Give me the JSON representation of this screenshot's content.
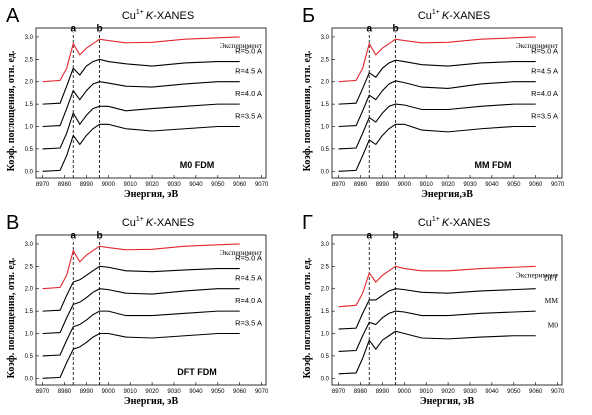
{
  "chart_data": [
    {
      "type": "line",
      "panel": "А",
      "title": {
        "text": "Cu",
        "sup": "1+",
        "italic": "K",
        "rest": "-XANES"
      },
      "model": "M0 FDM",
      "xlabel": "Энергия, эВ",
      "ylabel": "Коэф. поглощения, отн. ед.",
      "xlim": [
        8967,
        9072
      ],
      "ylim": [
        -0.15,
        3.2
      ],
      "xticks": [
        8970,
        8980,
        8990,
        9000,
        9010,
        9020,
        9030,
        9040,
        9050,
        9060,
        9070
      ],
      "yticks": [
        {
          "value": 0,
          "label": "0.0"
        },
        0.5,
        {
          "value": 1,
          "label": "1.0"
        },
        1.5,
        {
          "value": 2,
          "label": "2.0"
        },
        2.5,
        {
          "value": 3,
          "label": "3.0"
        }
      ],
      "markers": [
        {
          "x": 8984,
          "label": "a"
        },
        {
          "x": 8996,
          "label": "b"
        }
      ],
      "x": [
        8970,
        8978,
        8981,
        8984,
        8987,
        8990,
        8993,
        8996,
        9000,
        9008,
        9020,
        9035,
        9050,
        9060
      ],
      "series": [
        {
          "name": "Эксперимент",
          "color": "#e3262e",
          "values": [
            2.0,
            2.03,
            2.3,
            2.85,
            2.6,
            2.75,
            2.85,
            2.95,
            2.92,
            2.87,
            2.88,
            2.95,
            2.98,
            3.0
          ]
        },
        {
          "name": "R=5.0 A",
          "color": "#000000",
          "values": [
            1.5,
            1.52,
            1.9,
            2.3,
            2.15,
            2.35,
            2.45,
            2.5,
            2.45,
            2.4,
            2.35,
            2.42,
            2.45,
            2.45
          ]
        },
        {
          "name": "R=4.5 A",
          "color": "#000000",
          "values": [
            1.0,
            1.02,
            1.4,
            1.8,
            1.6,
            1.8,
            1.95,
            2.0,
            1.97,
            1.9,
            1.88,
            1.95,
            2.0,
            2.0
          ]
        },
        {
          "name": "R=4.0 A",
          "color": "#000000",
          "values": [
            0.5,
            0.52,
            0.85,
            1.3,
            1.05,
            1.25,
            1.4,
            1.45,
            1.45,
            1.35,
            1.4,
            1.45,
            1.5,
            1.5
          ]
        },
        {
          "name": "R=3.5 A",
          "color": "#000000",
          "values": [
            0.0,
            0.02,
            0.35,
            0.8,
            0.6,
            0.8,
            0.95,
            1.05,
            1.05,
            0.95,
            0.9,
            0.95,
            1.0,
            1.0
          ]
        }
      ]
    },
    {
      "type": "line",
      "panel": "Б",
      "title": {
        "text": "Cu",
        "sup": "1+",
        "italic": "K",
        "rest": "-XANES"
      },
      "model": "MM FDM",
      "xlabel": "Энергия,эВ",
      "ylabel": "Коэф. поглощения, отн. ед.",
      "xlim": [
        8967,
        9072
      ],
      "ylim": [
        -0.15,
        3.2
      ],
      "xticks": [
        8970,
        8980,
        8990,
        9000,
        9010,
        9020,
        9030,
        9040,
        9050,
        9060,
        9070
      ],
      "yticks": [
        {
          "value": 0,
          "label": "0.0"
        },
        0.5,
        {
          "value": 1,
          "label": "1.0"
        },
        1.5,
        {
          "value": 2,
          "label": "2.0"
        },
        2.5,
        {
          "value": 3,
          "label": "3.0"
        }
      ],
      "markers": [
        {
          "x": 8984,
          "label": "a"
        },
        {
          "x": 8996,
          "label": "b"
        }
      ],
      "x": [
        8970,
        8978,
        8981,
        8984,
        8987,
        8990,
        8993,
        8996,
        9000,
        9008,
        9020,
        9035,
        9050,
        9060
      ],
      "series": [
        {
          "name": "Эксперимент",
          "color": "#e3262e",
          "values": [
            2.0,
            2.03,
            2.3,
            2.85,
            2.6,
            2.75,
            2.85,
            2.95,
            2.92,
            2.87,
            2.88,
            2.95,
            2.98,
            3.0
          ]
        },
        {
          "name": "R=5.0 A",
          "color": "#000000",
          "values": [
            1.5,
            1.52,
            1.85,
            2.2,
            2.1,
            2.3,
            2.42,
            2.48,
            2.45,
            2.38,
            2.35,
            2.42,
            2.45,
            2.45
          ]
        },
        {
          "name": "R=4.5 A",
          "color": "#000000",
          "values": [
            1.0,
            1.02,
            1.35,
            1.7,
            1.6,
            1.8,
            1.95,
            2.02,
            1.98,
            1.88,
            1.85,
            1.95,
            2.0,
            2.0
          ]
        },
        {
          "name": "R=4.0 A",
          "color": "#000000",
          "values": [
            0.5,
            0.52,
            0.85,
            1.2,
            1.1,
            1.3,
            1.45,
            1.5,
            1.48,
            1.38,
            1.38,
            1.45,
            1.5,
            1.5
          ]
        },
        {
          "name": "R=3.5 A",
          "color": "#000000",
          "values": [
            0.0,
            0.02,
            0.35,
            0.7,
            0.6,
            0.8,
            0.95,
            1.05,
            1.05,
            0.92,
            0.88,
            0.95,
            1.0,
            1.0
          ]
        }
      ]
    },
    {
      "type": "line",
      "panel": "В",
      "title": {
        "text": "Cu",
        "sup": "1+",
        "italic": "K",
        "rest": "-XANES"
      },
      "model": "DFT FDM",
      "xlabel": "Энергия, эВ",
      "ylabel": "Коэф. поглощения, отн. ед.",
      "xlim": [
        8967,
        9072
      ],
      "ylim": [
        -0.15,
        3.2
      ],
      "xticks": [
        8970,
        8980,
        8990,
        9000,
        9010,
        9020,
        9030,
        9040,
        9050,
        9060,
        9070
      ],
      "yticks": [
        {
          "value": 0,
          "label": "0.0"
        },
        0.5,
        {
          "value": 1,
          "label": "1.0"
        },
        1.5,
        {
          "value": 2,
          "label": "2.0"
        },
        2.5,
        {
          "value": 3,
          "label": "3.0"
        }
      ],
      "markers": [
        {
          "x": 8984,
          "label": "a"
        },
        {
          "x": 8996,
          "label": "b"
        }
      ],
      "x": [
        8970,
        8978,
        8981,
        8984,
        8987,
        8990,
        8993,
        8996,
        9000,
        9008,
        9020,
        9035,
        9050,
        9060
      ],
      "series": [
        {
          "name": "Эксперимент",
          "color": "#e3262e",
          "values": [
            2.0,
            2.03,
            2.3,
            2.85,
            2.6,
            2.75,
            2.85,
            2.95,
            2.92,
            2.87,
            2.88,
            2.95,
            2.98,
            3.0
          ]
        },
        {
          "name": "R=5.0 A",
          "color": "#000000",
          "values": [
            1.5,
            1.52,
            1.85,
            2.15,
            2.2,
            2.3,
            2.4,
            2.5,
            2.48,
            2.4,
            2.38,
            2.42,
            2.45,
            2.45
          ]
        },
        {
          "name": "R=4.5 A",
          "color": "#000000",
          "values": [
            1.0,
            1.02,
            1.35,
            1.65,
            1.7,
            1.8,
            1.92,
            2.0,
            1.98,
            1.9,
            1.88,
            1.95,
            2.0,
            2.0
          ]
        },
        {
          "name": "R=4.0 A",
          "color": "#000000",
          "values": [
            0.5,
            0.52,
            0.85,
            1.15,
            1.2,
            1.3,
            1.42,
            1.5,
            1.5,
            1.4,
            1.4,
            1.45,
            1.5,
            1.5
          ]
        },
        {
          "name": "R=3.5 A",
          "color": "#000000",
          "values": [
            0.0,
            0.02,
            0.35,
            0.65,
            0.7,
            0.8,
            0.92,
            1.0,
            1.0,
            0.92,
            0.9,
            0.95,
            1.0,
            1.0
          ]
        }
      ]
    },
    {
      "type": "line",
      "panel": "Г",
      "title": {
        "text": "Cu",
        "sup": "1+",
        "italic": "K",
        "rest": "-XANES"
      },
      "xlabel": "Энергия, эВ",
      "ylabel": "Коэф. поглощения, отн. ед.",
      "xlim": [
        8967,
        9072
      ],
      "ylim": [
        -0.15,
        3.2
      ],
      "xticks": [
        8970,
        8980,
        8990,
        9000,
        9010,
        9020,
        9030,
        9040,
        9050,
        9060,
        9070
      ],
      "yticks": [
        {
          "value": 0,
          "label": "0.0"
        },
        0.5,
        {
          "value": 1,
          "label": "1.0"
        },
        1.5,
        {
          "value": 2,
          "label": "2.0"
        },
        2.5,
        {
          "value": 3,
          "label": "3.0"
        }
      ],
      "markers": [
        {
          "x": 8984,
          "label": "a"
        },
        {
          "x": 8996,
          "label": "b"
        }
      ],
      "x": [
        8970,
        8978,
        8981,
        8984,
        8987,
        8990,
        8993,
        8996,
        9000,
        9008,
        9020,
        9035,
        9050,
        9060
      ],
      "series": [
        {
          "name": "Эксперимент",
          "color": "#e3262e",
          "values": [
            1.6,
            1.63,
            1.9,
            2.35,
            2.15,
            2.3,
            2.4,
            2.5,
            2.45,
            2.4,
            2.4,
            2.45,
            2.48,
            2.5
          ]
        },
        {
          "name": "DFT",
          "color": "#000000",
          "values": [
            1.1,
            1.12,
            1.45,
            1.75,
            1.75,
            1.85,
            1.95,
            2.0,
            1.98,
            1.92,
            1.9,
            1.95,
            1.98,
            2.0
          ]
        },
        {
          "name": "MM",
          "color": "#000000",
          "values": [
            0.6,
            0.62,
            0.95,
            1.25,
            1.2,
            1.35,
            1.45,
            1.5,
            1.48,
            1.4,
            1.4,
            1.45,
            1.48,
            1.5
          ]
        },
        {
          "name": "M0",
          "color": "#000000",
          "values": [
            0.1,
            0.12,
            0.45,
            0.85,
            0.65,
            0.85,
            0.95,
            1.05,
            1.0,
            0.9,
            0.88,
            0.92,
            0.95,
            0.95
          ]
        }
      ]
    }
  ]
}
